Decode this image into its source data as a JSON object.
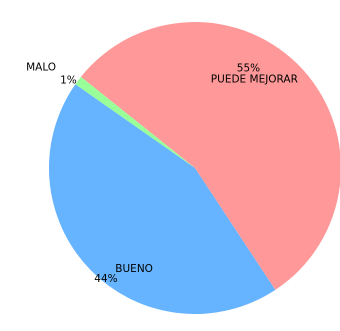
{
  "chart_data": {
    "type": "pie",
    "title": "",
    "slices": [
      {
        "label": "BUENO",
        "value": 44,
        "pct_label": "44%",
        "color": "#66b3ff"
      },
      {
        "label": "PUEDE MEJORAR",
        "value": 55,
        "pct_label": "55%",
        "color": "#ff9999"
      },
      {
        "label": "MALO",
        "value": 1,
        "pct_label": "1%",
        "color": "#99ff99"
      }
    ],
    "start_angle_deg": 145,
    "direction": "counterclockwise",
    "legend": "none"
  }
}
